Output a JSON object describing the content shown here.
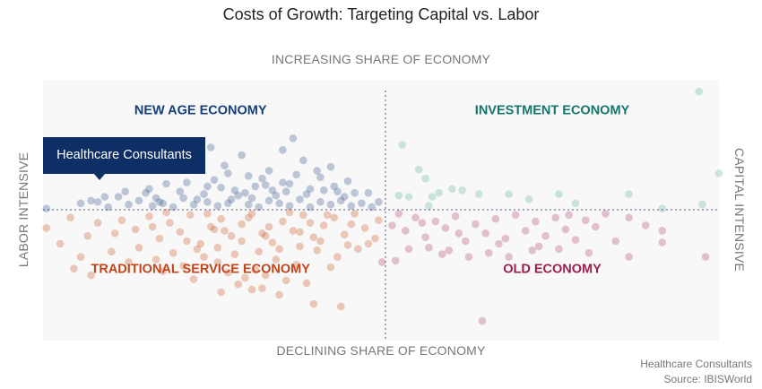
{
  "title": "Costs of Growth: Targeting Capital vs. Labor",
  "highlight": {
    "label": "Healthcare Consultants",
    "x": -8.6,
    "y": 3.3
  },
  "footer": {
    "line1": "Healthcare Consultants",
    "line2": "Source: IBISWorld"
  },
  "colors": {
    "new_age": "#2d4e86",
    "traditional": "#c9521e",
    "investment": "#5fb09e",
    "old": "#ad3d68",
    "highlight": "#0d2f66",
    "quadrant_new_age": "#163f7a",
    "quadrant_traditional": "#c0451a",
    "quadrant_investment": "#14766a",
    "quadrant_old": "#9a1f4e",
    "divider": "#8a8aa8",
    "plot_bg": "#f8f8f8"
  },
  "chart_data": {
    "type": "scatter",
    "title": "Costs of Growth: Targeting Capital vs. Labor",
    "axis_labels": {
      "top": "INCREASING SHARE OF ECONOMY",
      "bottom": "DECLINING SHARE OF ECONOMY",
      "left": "LABOR INTENSIVE",
      "right": "CAPITAL INTENSIVE"
    },
    "xlim": [
      -10,
      10
    ],
    "ylim": [
      -10,
      10
    ],
    "grid": false,
    "quadrants": [
      {
        "key": "new_age",
        "label": "NEW AGE ECONOMY",
        "x": -5.4,
        "y": 7.7
      },
      {
        "key": "investment",
        "label": "INVESTMENT ECONOMY",
        "x": 5.0,
        "y": 7.7
      },
      {
        "key": "traditional",
        "label": "TRADITIONAL SERVICE ECONOMY",
        "x": -5.4,
        "y": -4.5
      },
      {
        "key": "old",
        "label": "OLD ECONOMY",
        "x": 5.0,
        "y": -4.5
      }
    ],
    "series": [
      {
        "key": "new_age",
        "points": [
          [
            -9.9,
            0.1
          ],
          [
            -8.9,
            0.5
          ],
          [
            -8.4,
            0.6
          ],
          [
            -8.1,
            0.2
          ],
          [
            -7.5,
            0.4
          ],
          [
            -7.2,
            0.7
          ],
          [
            -6.8,
            0.3
          ],
          [
            -6.5,
            0.5
          ],
          [
            -6.2,
            0.2
          ],
          [
            -5.9,
            0.9
          ],
          [
            -5.6,
            0.4
          ],
          [
            -5.2,
            0.6
          ],
          [
            -4.9,
            0.3
          ],
          [
            -4.6,
            0.5
          ],
          [
            -4.3,
            1.1
          ],
          [
            -4.0,
            0.4
          ],
          [
            -3.7,
            0.2
          ],
          [
            -3.4,
            0.7
          ],
          [
            -3.1,
            0.5
          ],
          [
            -2.8,
            0.3
          ],
          [
            -2.5,
            0.8
          ],
          [
            -2.2,
            0.2
          ],
          [
            -1.9,
            0.6
          ],
          [
            -1.6,
            0.4
          ],
          [
            -1.3,
            0.7
          ],
          [
            -1.0,
            0.3
          ],
          [
            -0.7,
            0.5
          ],
          [
            -0.4,
            0.2
          ],
          [
            -0.2,
            0.6
          ],
          [
            -6.9,
            1.6
          ],
          [
            -5.8,
            2.1
          ],
          [
            -4.8,
            1.7
          ],
          [
            -4.1,
            1.3
          ],
          [
            -3.5,
            1.9
          ],
          [
            -2.9,
            1.4
          ],
          [
            -2.3,
            1.2
          ],
          [
            -1.5,
            1.8
          ],
          [
            -7.8,
            1.0
          ],
          [
            -6.0,
            1.4
          ],
          [
            -5.0,
            2.3
          ],
          [
            -4.4,
            1.5
          ],
          [
            -3.8,
            1.8
          ],
          [
            -3.2,
            1.1
          ],
          [
            -2.6,
            2.7
          ],
          [
            -1.8,
            1.5
          ],
          [
            -1.2,
            1.0
          ],
          [
            -0.9,
            1.3
          ],
          [
            -4.5,
            0.8
          ],
          [
            -5.3,
            1.2
          ],
          [
            -6.4,
            2.0
          ],
          [
            -3.0,
            2.1
          ],
          [
            -2.0,
            3.0
          ],
          [
            -4.6,
            2.8
          ],
          [
            -5.6,
            3.3
          ],
          [
            -4.2,
            4.2
          ],
          [
            -2.7,
            5.5
          ],
          [
            -3.6,
            2.4
          ],
          [
            -5.2,
            1.8
          ],
          [
            -6.7,
            0.9
          ],
          [
            -7.0,
            1.3
          ],
          [
            -3.9,
            0.9
          ],
          [
            -1.1,
            2.2
          ],
          [
            -0.5,
            1.3
          ],
          [
            -2.2,
            1.6
          ],
          [
            -6.6,
            0.6
          ],
          [
            -5.5,
            0.8
          ],
          [
            -3.3,
            1.5
          ],
          [
            -8.6,
            0.7
          ],
          [
            -8.2,
            1.0
          ],
          [
            -7.6,
            1.4
          ],
          [
            -4.7,
            3.4
          ],
          [
            -3.0,
            4.6
          ],
          [
            -2.4,
            3.8
          ],
          [
            -1.6,
            3.3
          ],
          [
            -5.1,
            4.8
          ],
          [
            -4.0,
            2.6
          ],
          [
            -3.4,
            3.0
          ],
          [
            -2.8,
            2.0
          ],
          [
            -1.9,
            2.5
          ],
          [
            -1.4,
            1.4
          ]
        ]
      },
      {
        "key": "traditional",
        "points": [
          [
            -9.9,
            -1.4
          ],
          [
            -9.2,
            -0.6
          ],
          [
            -8.7,
            -2.0
          ],
          [
            -8.4,
            -1.0
          ],
          [
            -8.0,
            -3.2
          ],
          [
            -7.7,
            -0.8
          ],
          [
            -7.3,
            -1.5
          ],
          [
            -6.9,
            -0.5
          ],
          [
            -6.6,
            -2.2
          ],
          [
            -6.3,
            -1.0
          ],
          [
            -6.0,
            -1.7
          ],
          [
            -5.7,
            -0.4
          ],
          [
            -5.4,
            -2.6
          ],
          [
            -5.1,
            -1.3
          ],
          [
            -4.8,
            -0.7
          ],
          [
            -4.5,
            -2.0
          ],
          [
            -4.2,
            -1.1
          ],
          [
            -3.9,
            -0.3
          ],
          [
            -3.6,
            -1.8
          ],
          [
            -3.3,
            -2.5
          ],
          [
            -3.0,
            -0.9
          ],
          [
            -2.7,
            -1.6
          ],
          [
            -2.4,
            -0.4
          ],
          [
            -2.1,
            -2.1
          ],
          [
            -1.8,
            -1.2
          ],
          [
            -1.5,
            -0.6
          ],
          [
            -1.2,
            -1.9
          ],
          [
            -0.9,
            -0.3
          ],
          [
            -0.6,
            -1.4
          ],
          [
            -0.3,
            -2.2
          ],
          [
            -6.2,
            -3.3
          ],
          [
            -5.5,
            -3.0
          ],
          [
            -4.9,
            -4.0
          ],
          [
            -4.4,
            -3.4
          ],
          [
            -3.8,
            -4.6
          ],
          [
            -3.2,
            -3.8
          ],
          [
            -2.6,
            -4.2
          ],
          [
            -2.0,
            -3.1
          ],
          [
            -1.4,
            -3.6
          ],
          [
            -7.2,
            -2.9
          ],
          [
            -6.7,
            -3.8
          ],
          [
            -5.9,
            -4.3
          ],
          [
            -5.3,
            -3.6
          ],
          [
            -4.6,
            -4.8
          ],
          [
            -4.1,
            -5.2
          ],
          [
            -3.5,
            -5.0
          ],
          [
            -2.9,
            -5.4
          ],
          [
            -2.3,
            -5.6
          ],
          [
            -1.6,
            -4.4
          ],
          [
            -0.8,
            -3.0
          ],
          [
            -3.6,
            -6.0
          ],
          [
            -3.9,
            -6.1
          ],
          [
            -4.8,
            -6.3
          ],
          [
            -3.1,
            -6.5
          ],
          [
            -2.1,
            -7.2
          ],
          [
            -1.3,
            -7.4
          ],
          [
            -9.1,
            -4.5
          ],
          [
            -8.6,
            -5.0
          ],
          [
            -9.5,
            -2.6
          ],
          [
            -8.9,
            -3.6
          ],
          [
            -7.5,
            -4.0
          ],
          [
            -6.5,
            -4.7
          ],
          [
            -5.6,
            -5.3
          ],
          [
            -4.3,
            -5.7
          ],
          [
            -3.7,
            -3.2
          ],
          [
            -2.5,
            -2.8
          ],
          [
            -1.9,
            -2.4
          ],
          [
            -1.1,
            -2.7
          ],
          [
            -0.5,
            -2.6
          ],
          [
            -0.2,
            -0.8
          ],
          [
            -6.4,
            -0.2
          ],
          [
            -5.2,
            -0.3
          ],
          [
            -4.0,
            -0.6
          ],
          [
            -2.8,
            -0.2
          ],
          [
            -1.7,
            -0.4
          ],
          [
            -7.9,
            -1.8
          ],
          [
            -6.8,
            -1.3
          ],
          [
            -5.8,
            -2.4
          ],
          [
            -4.7,
            -1.6
          ],
          [
            -3.4,
            -1.3
          ],
          [
            -2.2,
            -1.0
          ],
          [
            -1.0,
            -1.1
          ],
          [
            -3.5,
            -2.0
          ],
          [
            -4.9,
            -2.9
          ],
          [
            -5.0,
            -1.5
          ],
          [
            -2.5,
            -1.7
          ],
          [
            -3.1,
            -3.0
          ],
          [
            -4.2,
            -2.4
          ]
        ]
      },
      {
        "key": "investment",
        "points": [
          [
            0.5,
            5.0
          ],
          [
            1.0,
            3.1
          ],
          [
            1.2,
            2.4
          ],
          [
            1.6,
            1.3
          ],
          [
            2.3,
            1.5
          ],
          [
            1.4,
            1.0
          ],
          [
            0.7,
            1.0
          ],
          [
            2.8,
            1.2
          ],
          [
            4.3,
            0.8
          ],
          [
            5.2,
            1.2
          ],
          [
            5.7,
            0.5
          ],
          [
            7.3,
            1.2
          ],
          [
            8.3,
            0.1
          ],
          [
            9.5,
            0.4
          ],
          [
            10.0,
            2.8
          ],
          [
            9.4,
            9.1
          ],
          [
            3.7,
            1.2
          ],
          [
            2.0,
            1.6
          ],
          [
            1.3,
            0.3
          ],
          [
            0.4,
            1.1
          ]
        ]
      },
      {
        "key": "old",
        "points": [
          [
            0.2,
            -1.2
          ],
          [
            0.6,
            -1.6
          ],
          [
            0.9,
            -0.6
          ],
          [
            1.2,
            -2.1
          ],
          [
            1.5,
            -0.9
          ],
          [
            1.8,
            -1.4
          ],
          [
            2.1,
            -0.5
          ],
          [
            2.4,
            -2.4
          ],
          [
            2.7,
            -1.1
          ],
          [
            3.0,
            -1.8
          ],
          [
            3.3,
            -0.7
          ],
          [
            3.6,
            -2.2
          ],
          [
            3.9,
            -0.4
          ],
          [
            4.2,
            -1.6
          ],
          [
            4.5,
            -0.9
          ],
          [
            4.8,
            -2.0
          ],
          [
            5.1,
            -0.6
          ],
          [
            5.4,
            -1.5
          ],
          [
            5.7,
            -2.3
          ],
          [
            6.0,
            -0.8
          ],
          [
            6.3,
            -1.3
          ],
          [
            6.6,
            -0.3
          ],
          [
            6.9,
            -2.4
          ],
          [
            7.3,
            -0.6
          ],
          [
            7.8,
            -1.2
          ],
          [
            8.3,
            -1.6
          ],
          [
            0.7,
            -3.0
          ],
          [
            1.3,
            -2.9
          ],
          [
            1.9,
            -3.1
          ],
          [
            2.5,
            -3.6
          ],
          [
            3.1,
            -3.3
          ],
          [
            3.7,
            -3.6
          ],
          [
            4.4,
            -3.1
          ],
          [
            5.2,
            -3.0
          ],
          [
            6.1,
            -3.3
          ],
          [
            7.3,
            -3.6
          ],
          [
            8.3,
            -2.5
          ],
          [
            9.6,
            -3.6
          ],
          [
            -0.1,
            -4.0
          ],
          [
            0.3,
            -3.9
          ],
          [
            2.9,
            -8.5
          ],
          [
            1.1,
            -1.0
          ],
          [
            2.2,
            -1.8
          ],
          [
            3.4,
            -2.6
          ],
          [
            4.6,
            -2.8
          ],
          [
            5.5,
            -0.4
          ],
          [
            0.4,
            -0.3
          ],
          [
            1.7,
            -3.4
          ]
        ]
      }
    ]
  }
}
